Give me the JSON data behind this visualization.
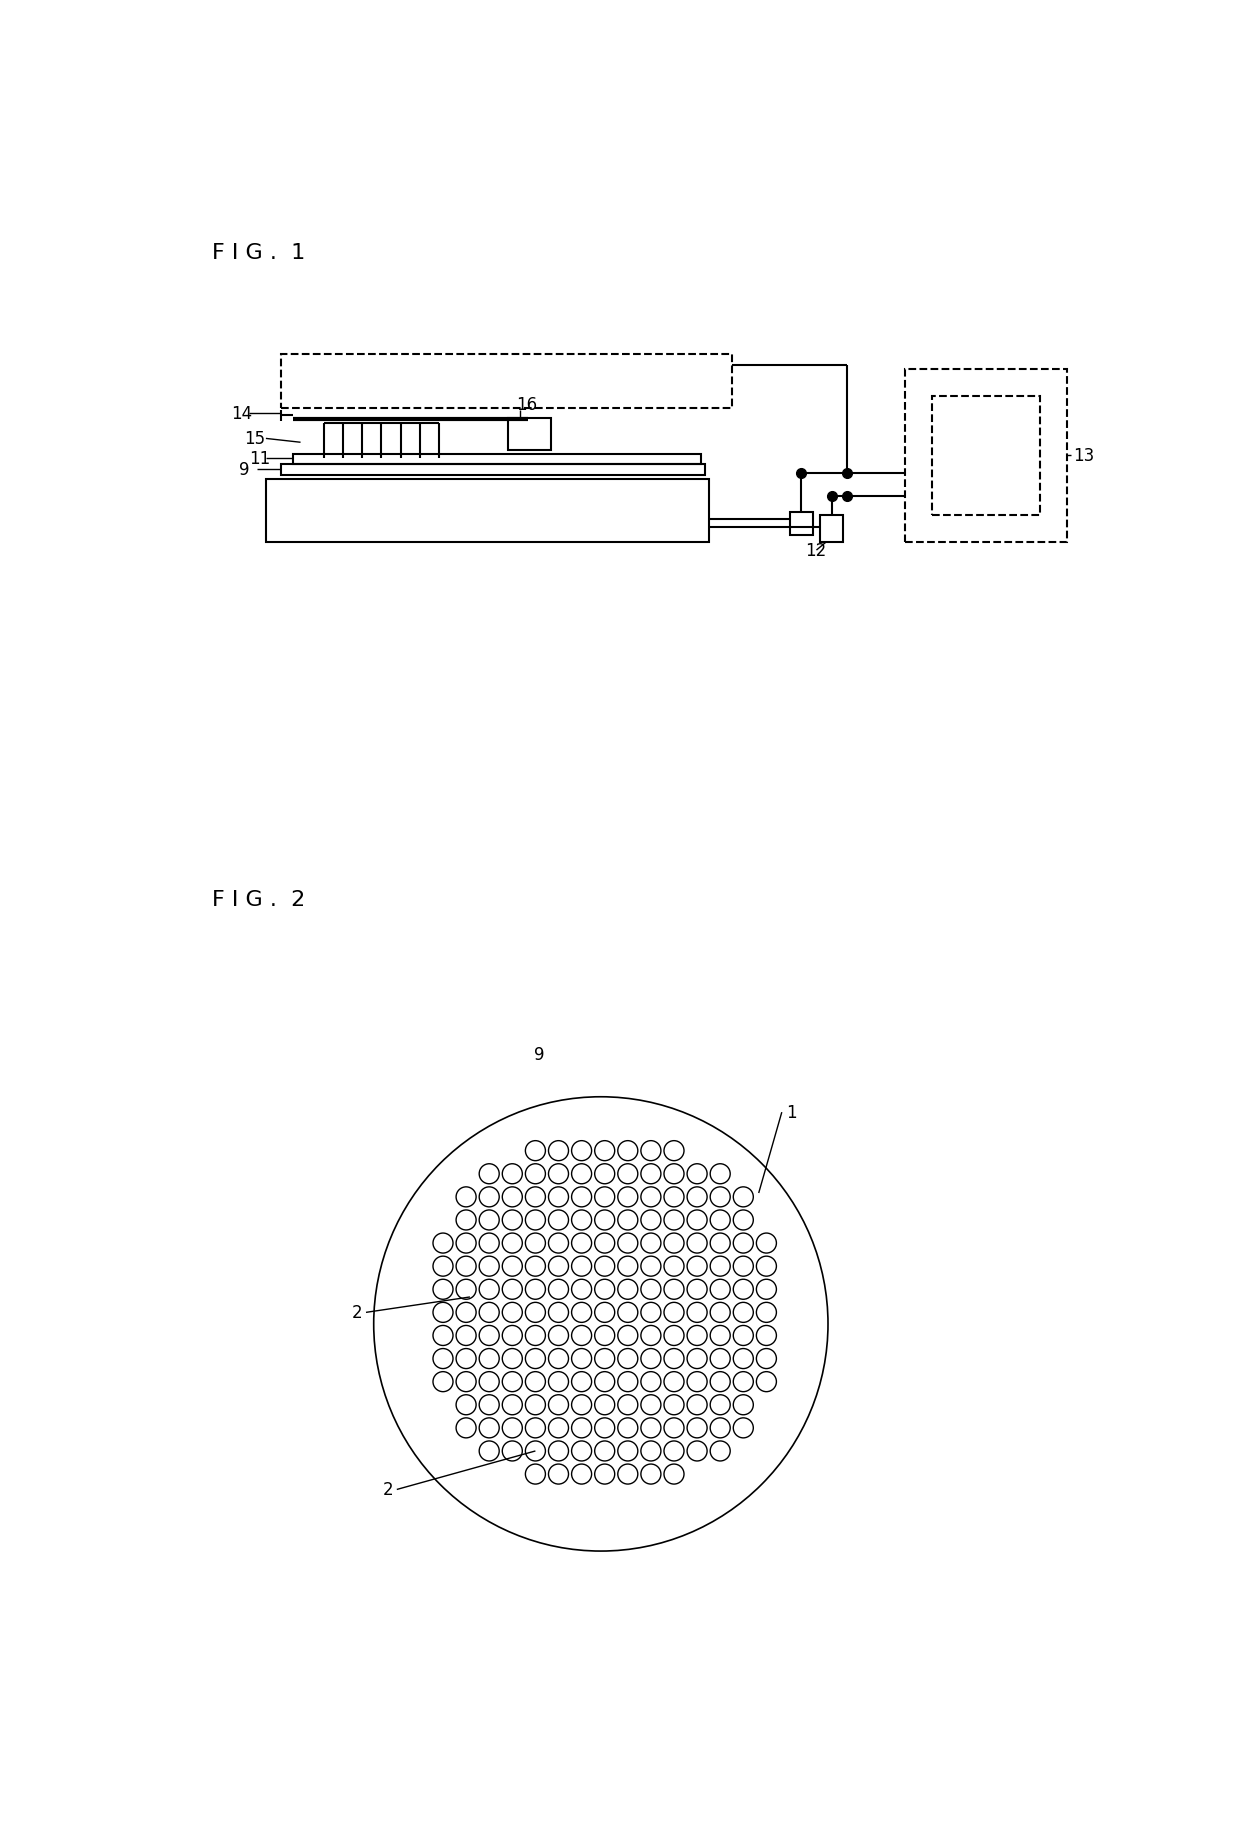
{
  "bg_color": "#ffffff",
  "line_color": "#000000",
  "fig1_title": "F I G .  1",
  "fig2_title": "F I G .  2",
  "label_fontsize": 12,
  "title_fontsize": 16,
  "lw": 1.5,
  "lw_thin": 1.0
}
